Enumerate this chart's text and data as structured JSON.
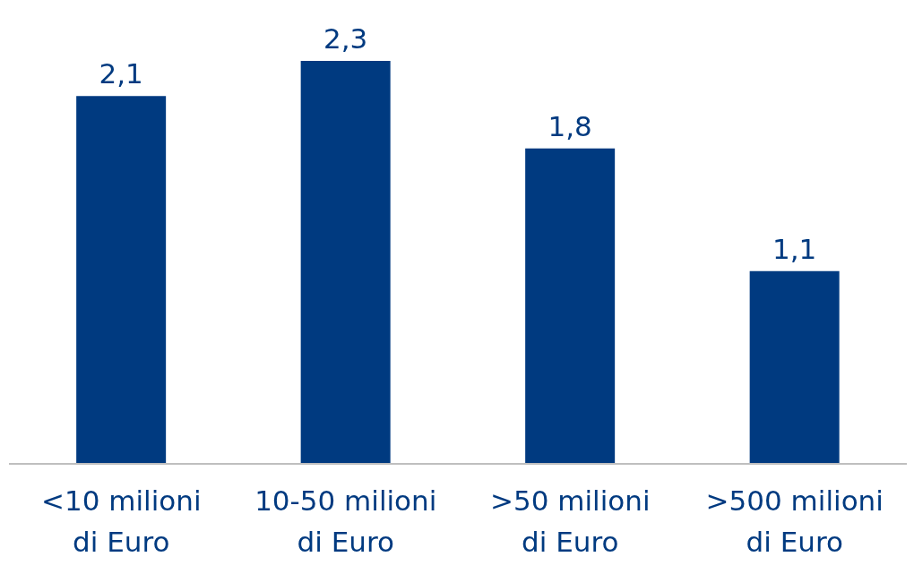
{
  "chart_data": {
    "type": "bar",
    "categories": [
      "<10 milioni di Euro",
      "10-50 milioni di Euro",
      ">50 milioni di Euro",
      ">500 milioni di Euro"
    ],
    "values": [
      2.1,
      2.3,
      1.8,
      1.1
    ],
    "value_labels": [
      "2,1",
      "2,3",
      "1,8",
      "1,1"
    ],
    "color": "#003a80",
    "grid": false,
    "legend": false
  }
}
